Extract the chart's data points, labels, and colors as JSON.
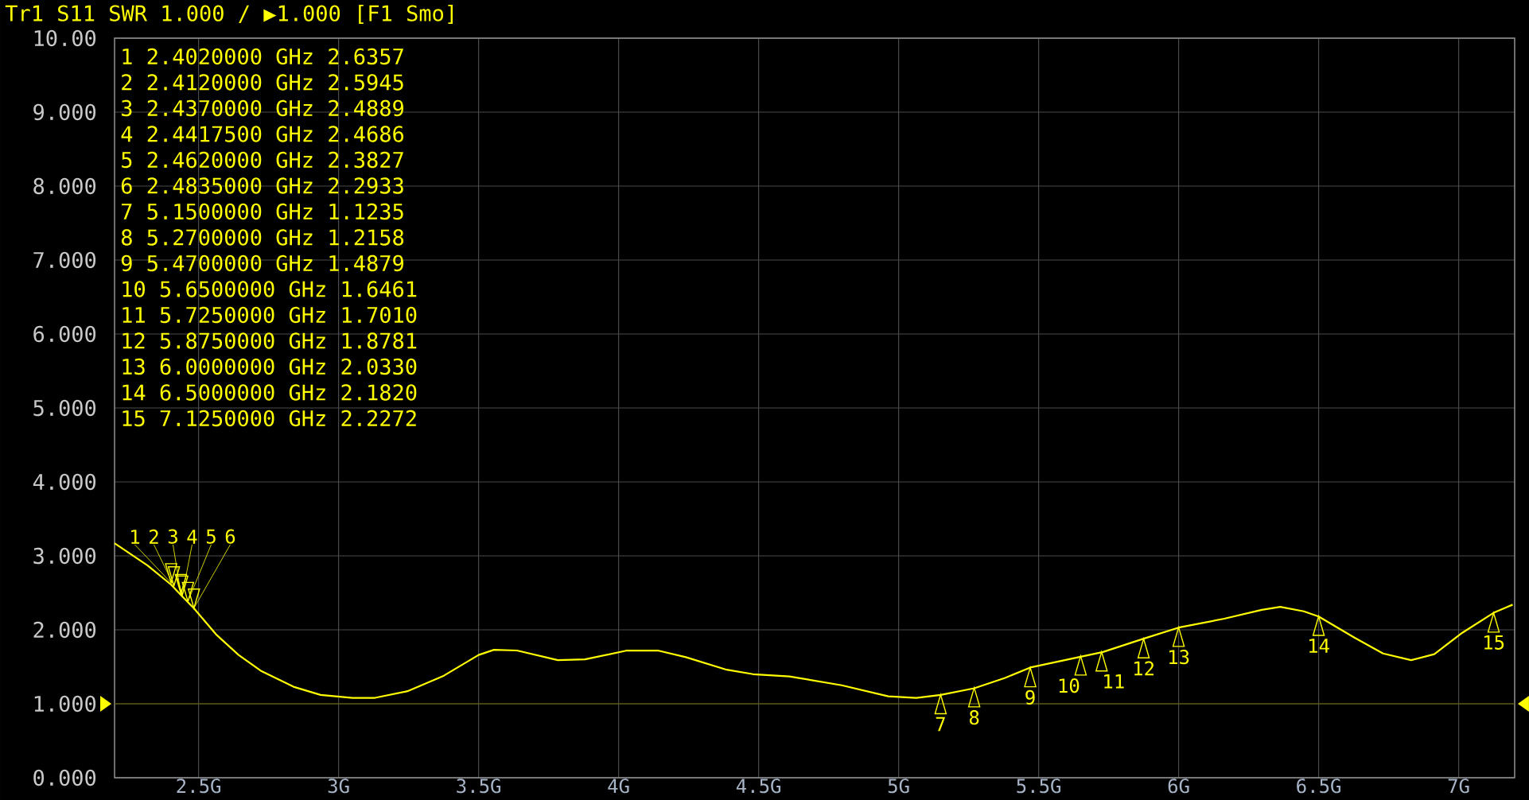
{
  "chart_data": {
    "type": "line",
    "title": "Tr1 S11 SWR 1.000 / ▶1.000 [F1 Smo]",
    "x": [
      2.2,
      2.318,
      2.402,
      2.437,
      2.4835,
      2.562,
      2.643,
      2.725,
      2.839,
      2.936,
      3.05,
      3.13,
      3.246,
      3.376,
      3.5,
      3.555,
      3.637,
      3.783,
      3.88,
      4.03,
      4.14,
      4.24,
      4.386,
      4.48,
      4.61,
      4.797,
      4.963,
      5.063,
      5.15,
      5.27,
      5.38,
      5.47,
      5.63,
      5.73,
      5.875,
      6.0,
      6.163,
      6.297,
      6.363,
      6.447,
      6.5,
      6.63,
      6.73,
      6.83,
      6.913,
      7.013,
      7.125,
      7.193
    ],
    "values": [
      3.17,
      2.87,
      2.61,
      2.47,
      2.29,
      1.94,
      1.66,
      1.44,
      1.23,
      1.12,
      1.08,
      1.08,
      1.17,
      1.38,
      1.66,
      1.73,
      1.72,
      1.59,
      1.6,
      1.72,
      1.72,
      1.63,
      1.46,
      1.4,
      1.37,
      1.25,
      1.1,
      1.08,
      1.12,
      1.21,
      1.35,
      1.49,
      1.62,
      1.7,
      1.88,
      2.03,
      2.15,
      2.27,
      2.31,
      2.25,
      2.18,
      1.89,
      1.68,
      1.59,
      1.67,
      1.96,
      2.23,
      2.34
    ],
    "color": "#ffff00",
    "grid": true,
    "xlim": [
      2.2,
      7.2
    ],
    "xticks": [
      {
        "value": 2.5,
        "label": "2.5G"
      },
      {
        "value": 3,
        "label": "3G"
      },
      {
        "value": 3.5,
        "label": "3.5G"
      },
      {
        "value": 4,
        "label": "4G"
      },
      {
        "value": 4.5,
        "label": "4.5G"
      },
      {
        "value": 5,
        "label": "5G"
      },
      {
        "value": 5.5,
        "label": "5.5G"
      },
      {
        "value": 6,
        "label": "6G"
      },
      {
        "value": 6.5,
        "label": "6.5G"
      },
      {
        "value": 7,
        "label": "7G"
      }
    ],
    "ylim": [
      0,
      10
    ],
    "yticks": [
      {
        "value": 0,
        "label": "0.000"
      },
      {
        "value": 1,
        "label": "1.000"
      },
      {
        "value": 2,
        "label": "2.000"
      },
      {
        "value": 3,
        "label": "3.000"
      },
      {
        "value": 4,
        "label": "4.000"
      },
      {
        "value": 5,
        "label": "5.000"
      },
      {
        "value": 6,
        "label": "6.000"
      },
      {
        "value": 7,
        "label": "7.000"
      },
      {
        "value": 8,
        "label": "8.000"
      },
      {
        "value": 9,
        "label": "9.000"
      },
      {
        "value": 10,
        "label": "10.00"
      }
    ],
    "ref_lines": [
      {
        "axis": "y",
        "value": 1
      }
    ],
    "annotations": [
      "1 2.4020000 GHz 2.6357",
      "2 2.4120000 GHz 2.5945",
      "3 2.4370000 GHz 2.4889",
      "4 2.4417500 GHz 2.4686",
      "5 2.4620000 GHz 2.3827",
      "6 2.4835000 GHz 2.2933",
      "7 5.1500000 GHz 1.1235",
      "8 5.2700000 GHz 1.2158",
      "9 5.4700000 GHz 1.4879",
      "10 5.6500000 GHz 1.6461",
      "11 5.7250000 GHz 1.7010",
      "12 5.8750000 GHz 1.8781",
      "13 6.0000000 GHz 2.0330",
      "14 6.5000000 GHz 2.1820",
      "15 7.1250000 GHz 2.2272",
      {
        "text": "1",
        "x": 2.402,
        "y": 2.6357
      },
      {
        "text": "2",
        "x": 2.412,
        "y": 2.5945
      },
      {
        "text": "3",
        "x": 2.437,
        "y": 2.4889
      },
      {
        "text": "4",
        "x": 2.44175,
        "y": 2.4686
      },
      {
        "text": "5",
        "x": 2.462,
        "y": 2.3827
      },
      {
        "text": "6",
        "x": 2.4835,
        "y": 2.2933
      },
      {
        "text": "7",
        "x": 5.15,
        "y": 1.1235
      },
      {
        "text": "8",
        "x": 5.27,
        "y": 1.2158
      },
      {
        "text": "9",
        "x": 5.47,
        "y": 1.4879
      },
      {
        "text": "10",
        "x": 5.65,
        "y": 1.6461
      },
      {
        "text": "11",
        "x": 5.725,
        "y": 1.701
      },
      {
        "text": "12",
        "x": 5.875,
        "y": 1.8781
      },
      {
        "text": "13",
        "x": 6.0,
        "y": 2.033
      },
      {
        "text": "14",
        "x": 6.5,
        "y": 2.182
      },
      {
        "text": "15",
        "x": 7.125,
        "y": 2.2272
      }
    ]
  }
}
